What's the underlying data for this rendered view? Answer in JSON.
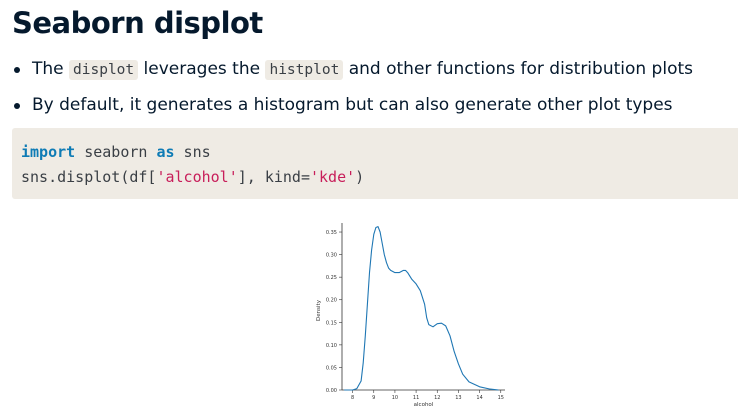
{
  "slide": {
    "title": "Seaborn displot",
    "bullets": [
      {
        "parts": [
          "The ",
          "displot",
          " leverages the ",
          "histplot",
          " and other functions for distribution plots"
        ]
      },
      {
        "text": "By default, it generates a histogram but can also generate other plot types"
      }
    ],
    "code": {
      "line1": {
        "kw1": "import",
        "mid": " seaborn ",
        "kw2": "as",
        "end": " sns"
      },
      "line2": {
        "pre": "sns.displot(df[",
        "str1": "'alcohol'",
        "mid": "], kind=",
        "str2": "'kde'",
        "end": ")"
      }
    },
    "colors": {
      "keyword": "#0e7bb5",
      "string": "#c81e5a",
      "code_background": "#efebe4",
      "line": "#1f77b4"
    }
  },
  "chart_data": {
    "type": "line",
    "title": "",
    "xlabel": "alcohol",
    "ylabel": "Density",
    "xlim": [
      7.5,
      15.2
    ],
    "ylim": [
      0,
      0.37
    ],
    "xticks": [
      8,
      9,
      10,
      11,
      12,
      13,
      14,
      15
    ],
    "yticks": [
      0.0,
      0.05,
      0.1,
      0.15,
      0.2,
      0.25,
      0.3,
      0.35
    ],
    "ytick_labels": [
      "0.00",
      "0.05",
      "0.10",
      "0.15",
      "0.20",
      "0.25",
      "0.30",
      "0.35"
    ],
    "grid": false,
    "series": [
      {
        "x": [
          7.6,
          8.0,
          8.2,
          8.4,
          8.5,
          8.6,
          8.7,
          8.8,
          8.9,
          9.0,
          9.1,
          9.2,
          9.3,
          9.4,
          9.5,
          9.6,
          9.7,
          9.8,
          10.0,
          10.2,
          10.4,
          10.5,
          10.6,
          10.8,
          11.0,
          11.2,
          11.4,
          11.5,
          11.6,
          11.8,
          12.0,
          12.2,
          12.4,
          12.6,
          12.8,
          13.0,
          13.2,
          13.5,
          14.0,
          14.5,
          14.9
        ],
        "y": [
          0.0,
          0.0,
          0.003,
          0.02,
          0.06,
          0.12,
          0.19,
          0.26,
          0.31,
          0.345,
          0.36,
          0.362,
          0.35,
          0.325,
          0.3,
          0.282,
          0.27,
          0.265,
          0.26,
          0.26,
          0.265,
          0.265,
          0.26,
          0.245,
          0.235,
          0.22,
          0.19,
          0.16,
          0.145,
          0.14,
          0.147,
          0.148,
          0.142,
          0.12,
          0.085,
          0.058,
          0.035,
          0.018,
          0.007,
          0.002,
          0.0
        ]
      }
    ]
  }
}
